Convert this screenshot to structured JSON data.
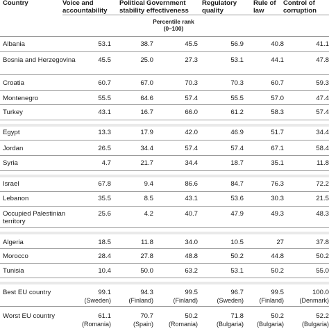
{
  "headers": {
    "country": "Country",
    "voice": [
      "Voice and",
      "accountability"
    ],
    "political": [
      "Political",
      "stability"
    ],
    "government": [
      "Government",
      "effectiveness"
    ],
    "regulatory": [
      "Regulatory",
      "quality"
    ],
    "rule": [
      "Rule of",
      "law"
    ],
    "corruption": [
      "Control of",
      "corruption"
    ]
  },
  "unit_label": [
    "Percentile rank",
    "(0–100)"
  ],
  "rows": [
    {
      "country": "Albania",
      "values": [
        "53.1",
        "38.7",
        "45.5",
        "56.9",
        "40.8",
        "41.1"
      ]
    },
    {
      "country": "Bosnia and Herzegovina",
      "values": [
        "45.5",
        "25.0",
        "27.3",
        "53.1",
        "44.1",
        "47.8"
      ]
    },
    {
      "country": "Croatia",
      "values": [
        "60.7",
        "67.0",
        "70.3",
        "70.3",
        "60.7",
        "59.3"
      ]
    },
    {
      "country": "Montenegro",
      "values": [
        "55.5",
        "64.6",
        "57.4",
        "55.5",
        "57.0",
        "47.4"
      ]
    },
    {
      "country": "Turkey",
      "values": [
        "43.1",
        "16.7",
        "66.0",
        "61.2",
        "58.3",
        "57.4"
      ]
    },
    {
      "country": "Egypt",
      "values": [
        "13.3",
        "17.9",
        "42.0",
        "46.9",
        "51.7",
        "34.4"
      ]
    },
    {
      "country": "Jordan",
      "values": [
        "26.5",
        "34.4",
        "57.4",
        "57.4",
        "67.1",
        "58.4"
      ]
    },
    {
      "country": "Syria",
      "values": [
        "4.7",
        "21.7",
        "34.4",
        "18.7",
        "35.1",
        "11.8"
      ]
    },
    {
      "country": "Israel",
      "values": [
        "67.8",
        "9.4",
        "86.6",
        "84.7",
        "76.3",
        "72.2"
      ]
    },
    {
      "country": "Lebanon",
      "values": [
        "35.5",
        "8.5",
        "43.1",
        "53.6",
        "30.3",
        "21.5"
      ]
    },
    {
      "country": "Occupied Palestinian territory",
      "values": [
        "25.6",
        "4.2",
        "40.7",
        "47.9",
        "49.3",
        "48.3"
      ]
    },
    {
      "country": "Algeria",
      "values": [
        "18.5",
        "11.8",
        "34.0",
        "10.5",
        "27",
        "37.8"
      ]
    },
    {
      "country": "Morocco",
      "values": [
        "28.4",
        "27.8",
        "48.8",
        "50.2",
        "44.8",
        "50.2"
      ]
    },
    {
      "country": "Tunisia",
      "values": [
        "10.4",
        "50.0",
        "63.2",
        "53.1",
        "50.2",
        "55.0"
      ]
    },
    {
      "country": "Best EU country",
      "values": [
        "99.1",
        "94.3",
        "99.5",
        "96.7",
        "99.5",
        "100.0"
      ],
      "notes": [
        "(Sweden)",
        "(Finland)",
        "(Finland)",
        "(Sweden)",
        "(Finland)",
        "(Denmark)"
      ]
    },
    {
      "country": "Worst EU country",
      "values": [
        "61.1",
        "70.7",
        "50.2",
        "71.8",
        "50.2",
        "52.2"
      ],
      "notes": [
        "(Romania)",
        "(Spain)",
        "(Romania)",
        "(Bulgaria)",
        "(Bulgaria)",
        "(Bulgaria)"
      ]
    }
  ]
}
